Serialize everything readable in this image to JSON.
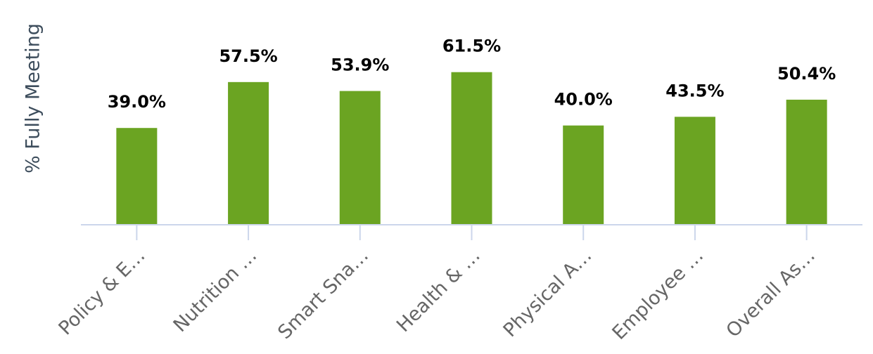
{
  "chart_data": {
    "type": "bar",
    "y_label": "% Fully Meeting",
    "categories": [
      "Policy & E…",
      "Nutrition …",
      "Smart Sna…",
      "Health & …",
      "Physical A…",
      "Employee …",
      "Overall As…"
    ],
    "values": [
      39.0,
      57.5,
      53.9,
      61.5,
      40.0,
      43.5,
      50.4
    ],
    "value_labels": [
      "39.0%",
      "57.5%",
      "53.9%",
      "61.5%",
      "40.0%",
      "43.5%",
      "50.4%"
    ],
    "color": "#6ba422",
    "ylim": [
      0,
      90
    ]
  }
}
